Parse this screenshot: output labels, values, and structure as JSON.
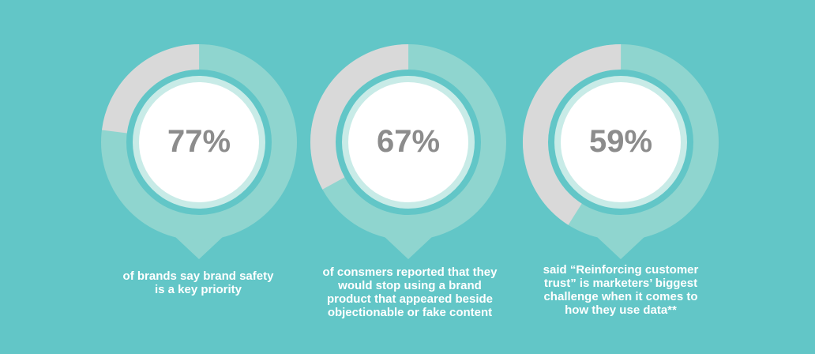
{
  "colors": {
    "background": "#62c6c7",
    "ring_track": "#8fd5cf",
    "ring_remainder": "#d9d9d9",
    "inner_ring": "#c8ebe7",
    "center": "#ffffff",
    "value_text": "#8c8c8c",
    "caption_text": "#ffffff"
  },
  "chart_data": [
    {
      "type": "pie",
      "value": 77,
      "label": "77%",
      "caption": "of brands say brand safety\nis a key priority"
    },
    {
      "type": "pie",
      "value": 67,
      "label": "67%",
      "caption": "of consmers reported that they\nwould stop using a brand\nproduct that appeared beside\nobjectionable or fake content"
    },
    {
      "type": "pie",
      "value": 59,
      "label": "59%",
      "caption": "said “Reinforcing customer\ntrust” is marketers’ biggest\nchallenge when it comes to\nhow they use data**"
    }
  ]
}
